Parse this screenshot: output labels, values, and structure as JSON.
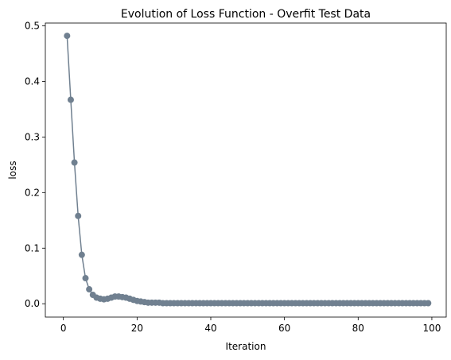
{
  "chart_data": {
    "type": "line",
    "title": "Evolution of Loss Function - Overfit Test Data",
    "xlabel": "Iteration",
    "ylabel": "loss",
    "xlim": [
      -4.9,
      103.9
    ],
    "ylim": [
      -0.024,
      0.505
    ],
    "xticks": [
      0,
      20,
      40,
      60,
      80,
      100
    ],
    "yticks": [
      0.0,
      0.1,
      0.2,
      0.3,
      0.4,
      0.5
    ],
    "xtick_labels": [
      "0",
      "20",
      "40",
      "60",
      "80",
      "100"
    ],
    "ytick_labels": [
      "0.0",
      "0.1",
      "0.2",
      "0.3",
      "0.4",
      "0.5"
    ],
    "grid": false,
    "legend": "none",
    "series": [
      {
        "color": "#708090",
        "marker": "circle",
        "x": [
          1,
          2,
          3,
          4,
          5,
          6,
          7,
          8,
          9,
          10,
          11,
          12,
          13,
          14,
          15,
          16,
          17,
          18,
          19,
          20,
          21,
          22,
          23,
          24,
          25,
          26,
          27,
          28,
          29,
          30,
          31,
          32,
          33,
          34,
          35,
          36,
          37,
          38,
          39,
          40,
          41,
          42,
          43,
          44,
          45,
          46,
          47,
          48,
          49,
          50,
          51,
          52,
          53,
          54,
          55,
          56,
          57,
          58,
          59,
          60,
          61,
          62,
          63,
          64,
          65,
          66,
          67,
          68,
          69,
          70,
          71,
          72,
          73,
          74,
          75,
          76,
          77,
          78,
          79,
          80,
          81,
          82,
          83,
          84,
          85,
          86,
          87,
          88,
          89,
          90,
          91,
          92,
          93,
          94,
          95,
          96,
          97,
          98,
          99
        ],
        "y": [
          0.482,
          0.367,
          0.254,
          0.158,
          0.088,
          0.046,
          0.026,
          0.016,
          0.011,
          0.009,
          0.008,
          0.009,
          0.011,
          0.013,
          0.013,
          0.012,
          0.011,
          0.009,
          0.007,
          0.005,
          0.004,
          0.003,
          0.002,
          0.002,
          0.002,
          0.002,
          0.001,
          0.001,
          0.001,
          0.001,
          0.001,
          0.001,
          0.001,
          0.001,
          0.001,
          0.001,
          0.001,
          0.001,
          0.001,
          0.001,
          0.001,
          0.001,
          0.001,
          0.001,
          0.001,
          0.001,
          0.001,
          0.001,
          0.001,
          0.001,
          0.001,
          0.001,
          0.001,
          0.001,
          0.001,
          0.001,
          0.001,
          0.001,
          0.001,
          0.001,
          0.001,
          0.001,
          0.001,
          0.001,
          0.001,
          0.001,
          0.001,
          0.001,
          0.001,
          0.001,
          0.001,
          0.001,
          0.001,
          0.001,
          0.001,
          0.001,
          0.001,
          0.001,
          0.001,
          0.001,
          0.001,
          0.001,
          0.001,
          0.001,
          0.001,
          0.001,
          0.001,
          0.001,
          0.001,
          0.001,
          0.001,
          0.001,
          0.001,
          0.001,
          0.001,
          0.001,
          0.001,
          0.001,
          0.001
        ]
      }
    ]
  }
}
